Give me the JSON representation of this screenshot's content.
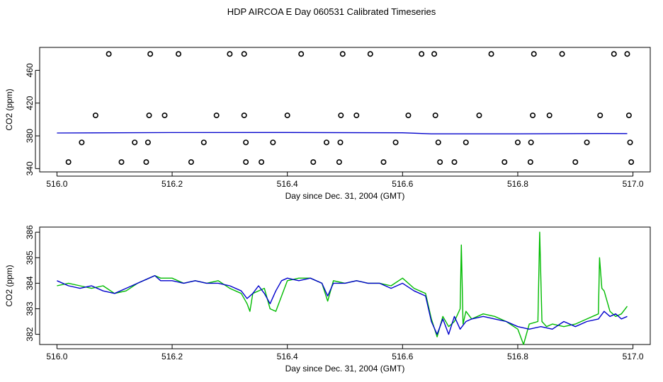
{
  "page": {
    "title": "HDP AIRCOA E  Day 060531  Calibrated Timeseries"
  },
  "chart_data": [
    {
      "type": "scatter",
      "xlabel": "Day since Dec. 31, 2004 (GMT)",
      "ylabel": "CO2 (ppm)",
      "xlim": [
        515.97,
        517.03
      ],
      "ylim": [
        336,
        488
      ],
      "x_ticks": [
        "516.0",
        "516.2",
        "516.4",
        "516.6",
        "516.8",
        "517.0"
      ],
      "y_ticks": [
        "340",
        "380",
        "420",
        "460"
      ],
      "grid": false,
      "series": [
        {
          "marker": "open-circle",
          "color": "#000000",
          "points": [
            [
              516.09,
              480
            ],
            [
              516.162,
              480
            ],
            [
              516.211,
              480
            ],
            [
              516.3,
              480
            ],
            [
              516.325,
              480
            ],
            [
              516.424,
              480
            ],
            [
              516.496,
              480
            ],
            [
              516.544,
              480
            ],
            [
              516.633,
              480
            ],
            [
              516.655,
              480
            ],
            [
              516.754,
              480
            ],
            [
              516.828,
              480
            ],
            [
              516.877,
              480
            ],
            [
              516.967,
              480
            ],
            [
              516.99,
              480
            ],
            [
              516.067,
              405
            ],
            [
              516.16,
              405
            ],
            [
              516.187,
              405
            ],
            [
              516.277,
              405
            ],
            [
              516.325,
              405
            ],
            [
              516.4,
              405
            ],
            [
              516.493,
              405
            ],
            [
              516.52,
              405
            ],
            [
              516.61,
              405
            ],
            [
              516.657,
              405
            ],
            [
              516.733,
              405
            ],
            [
              516.826,
              405
            ],
            [
              516.855,
              405
            ],
            [
              516.943,
              405
            ],
            [
              516.993,
              405
            ],
            [
              516.043,
              372
            ],
            [
              516.135,
              372
            ],
            [
              516.158,
              372
            ],
            [
              516.255,
              372
            ],
            [
              516.328,
              372
            ],
            [
              516.375,
              372
            ],
            [
              516.468,
              372
            ],
            [
              516.492,
              372
            ],
            [
              516.588,
              372
            ],
            [
              516.662,
              372
            ],
            [
              516.71,
              372
            ],
            [
              516.8,
              372
            ],
            [
              516.823,
              372
            ],
            [
              516.92,
              372
            ],
            [
              516.995,
              372
            ],
            [
              516.02,
              348
            ],
            [
              516.112,
              348
            ],
            [
              516.155,
              348
            ],
            [
              516.233,
              348
            ],
            [
              516.328,
              348
            ],
            [
              516.355,
              348
            ],
            [
              516.445,
              348
            ],
            [
              516.49,
              348
            ],
            [
              516.567,
              348
            ],
            [
              516.665,
              348
            ],
            [
              516.69,
              348
            ],
            [
              516.777,
              348
            ],
            [
              516.822,
              348
            ],
            [
              516.9,
              348
            ],
            [
              516.997,
              348
            ]
          ]
        },
        {
          "name": "",
          "color": "#0000cc",
          "line": [
            [
              516.0,
              383.5
            ],
            [
              516.2,
              384.0
            ],
            [
              516.4,
              384.1
            ],
            [
              516.6,
              383.8
            ],
            [
              516.65,
              382.5
            ],
            [
              516.8,
              382.5
            ],
            [
              516.95,
              382.9
            ],
            [
              516.99,
              382.8
            ]
          ]
        }
      ]
    },
    {
      "type": "line",
      "xlabel": "Day since Dec. 31, 2004 (GMT)",
      "ylabel": "CO2 (ppm)",
      "xlim": [
        515.97,
        517.03
      ],
      "ylim": [
        381.6,
        386.2
      ],
      "x_ticks": [
        "516.0",
        "516.2",
        "516.4",
        "516.6",
        "516.8",
        "517.0"
      ],
      "y_ticks": [
        "382",
        "383",
        "384",
        "385",
        "386"
      ],
      "grid": false,
      "series": [
        {
          "color": "#00bb00",
          "x": [
            516.0,
            516.02,
            516.04,
            516.06,
            516.08,
            516.1,
            516.12,
            516.14,
            516.16,
            516.17,
            516.18,
            516.2,
            516.22,
            516.24,
            516.26,
            516.28,
            516.3,
            516.32,
            516.33,
            516.335,
            516.34,
            516.36,
            516.37,
            516.38,
            516.4,
            516.42,
            516.44,
            516.46,
            516.47,
            516.48,
            516.5,
            516.52,
            516.54,
            516.56,
            516.58,
            516.6,
            516.62,
            516.64,
            516.65,
            516.66,
            516.67,
            516.68,
            516.69,
            516.7,
            516.702,
            516.705,
            516.71,
            516.72,
            516.74,
            516.76,
            516.78,
            516.8,
            516.81,
            516.82,
            516.835,
            516.838,
            516.842,
            516.85,
            516.86,
            516.88,
            516.9,
            516.92,
            516.94,
            516.942,
            516.946,
            516.95,
            516.96,
            516.97,
            516.98,
            516.99
          ],
          "y": [
            383.9,
            384.0,
            383.9,
            383.8,
            383.9,
            383.6,
            383.7,
            384.0,
            384.2,
            384.3,
            384.2,
            384.2,
            384.0,
            384.1,
            384.0,
            384.1,
            383.8,
            383.6,
            383.2,
            382.9,
            383.6,
            383.8,
            383.0,
            382.9,
            384.1,
            384.2,
            384.2,
            384.0,
            383.3,
            384.1,
            384.0,
            384.1,
            384.0,
            384.0,
            383.9,
            384.2,
            383.8,
            383.6,
            382.6,
            381.9,
            382.7,
            382.3,
            382.5,
            383.0,
            385.5,
            382.4,
            382.9,
            382.6,
            382.8,
            382.7,
            382.5,
            382.2,
            381.6,
            382.4,
            382.5,
            386.0,
            382.5,
            382.3,
            382.4,
            382.3,
            382.4,
            382.6,
            382.8,
            385.0,
            383.8,
            383.7,
            382.9,
            382.7,
            382.8,
            383.1
          ]
        },
        {
          "color": "#0000cc",
          "x": [
            516.0,
            516.02,
            516.04,
            516.06,
            516.08,
            516.1,
            516.12,
            516.14,
            516.16,
            516.17,
            516.18,
            516.2,
            516.22,
            516.24,
            516.26,
            516.28,
            516.3,
            516.32,
            516.33,
            516.34,
            516.35,
            516.36,
            516.37,
            516.38,
            516.39,
            516.4,
            516.42,
            516.44,
            516.46,
            516.47,
            516.48,
            516.5,
            516.52,
            516.54,
            516.56,
            516.58,
            516.6,
            516.62,
            516.64,
            516.65,
            516.66,
            516.67,
            516.68,
            516.69,
            516.7,
            516.71,
            516.72,
            516.74,
            516.76,
            516.78,
            516.8,
            516.82,
            516.84,
            516.86,
            516.88,
            516.9,
            516.92,
            516.94,
            516.95,
            516.96,
            516.97,
            516.98,
            516.99
          ],
          "y": [
            384.1,
            383.9,
            383.8,
            383.9,
            383.7,
            383.6,
            383.8,
            384.0,
            384.2,
            384.3,
            384.1,
            384.1,
            384.0,
            384.1,
            384.0,
            384.0,
            383.9,
            383.7,
            383.4,
            383.6,
            383.9,
            383.6,
            383.2,
            383.7,
            384.1,
            384.2,
            384.1,
            384.2,
            384.0,
            383.5,
            384.0,
            384.0,
            384.1,
            384.0,
            384.0,
            383.8,
            384.0,
            383.7,
            383.5,
            382.5,
            382.0,
            382.6,
            382.0,
            382.7,
            382.2,
            382.5,
            382.6,
            382.7,
            382.6,
            382.5,
            382.3,
            382.2,
            382.3,
            382.2,
            382.5,
            382.3,
            382.5,
            382.6,
            382.9,
            382.7,
            382.8,
            382.6,
            382.7
          ]
        }
      ]
    }
  ]
}
